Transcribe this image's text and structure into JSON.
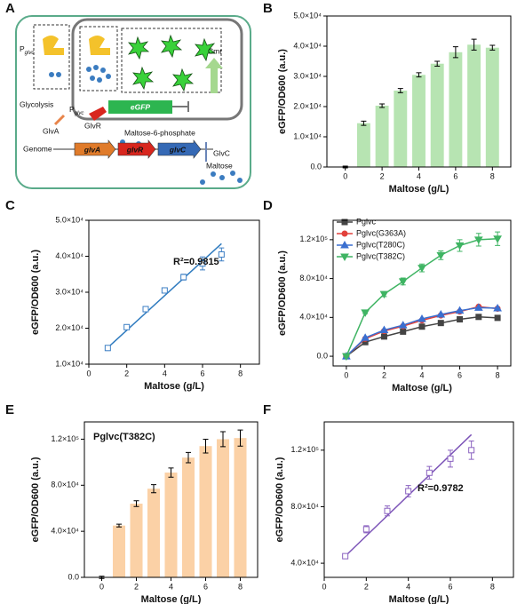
{
  "diagram": {
    "panel": "A",
    "promoter_left": {
      "main": "P",
      "sub": "glvc"
    },
    "promoter_mid": {
      "main": "P",
      "sub": "glvc"
    },
    "glycolysis": "Glycolysis",
    "glva_protein": "GlvA",
    "glvr_protein": "GlvR",
    "reporter": "eGFP",
    "resistance": "Cmr",
    "genome": "Genome",
    "gene_glva": "glvA",
    "gene_glvr": "glvR",
    "gene_glvc": "glvC",
    "metabolite": "Maltose-6-phosphate",
    "transporter": "GlvC",
    "sugar": "Maltose"
  },
  "chart_data": [
    {
      "type": "bar",
      "panel": "B",
      "color": "#b7e4b2",
      "x_label": "Maltose (g/L)",
      "y_label": "eGFP/OD600 (a.u.)",
      "x": [
        0,
        1,
        2,
        3,
        4,
        5,
        6,
        7,
        8
      ],
      "values": [
        0,
        14500,
        20300,
        25300,
        30500,
        34200,
        38000,
        40500,
        39500
      ],
      "errors": [
        300,
        700,
        600,
        700,
        700,
        800,
        1800,
        1800,
        800
      ],
      "xlim": [
        -1,
        9
      ],
      "xticks": [
        0,
        2,
        4,
        6,
        8
      ],
      "ylim": [
        0,
        50000
      ],
      "yticks": [
        {
          "value": 0,
          "label": "0.0"
        },
        {
          "value": 10000,
          "label": "1.0×10⁴"
        },
        {
          "value": 20000,
          "label": "2.0×10⁴"
        },
        {
          "value": 30000,
          "label": "3.0×10⁴"
        },
        {
          "value": 40000,
          "label": "4.0×10⁴"
        },
        {
          "value": 50000,
          "label": "5.0×10⁴"
        }
      ]
    },
    {
      "type": "scatter",
      "panel": "C",
      "color": "#3d7fc4",
      "fit_color": "#2f7bbf",
      "x_label": "Maltose (g/L)",
      "y_label": "eGFP/OD600 (a.u.)",
      "x": [
        1,
        2,
        3,
        4,
        5,
        6,
        7
      ],
      "values": [
        14500,
        20300,
        25300,
        30500,
        34200,
        38000,
        40500
      ],
      "errors": [
        700,
        600,
        700,
        700,
        800,
        1800,
        1800
      ],
      "fit": {
        "x": [
          1,
          7
        ],
        "y": [
          14600,
          43500
        ]
      },
      "annotation": "R²=0.9815",
      "xlim": [
        0,
        9
      ],
      "xticks": [
        0,
        2,
        4,
        6,
        8
      ],
      "ylim": [
        10000,
        50000
      ],
      "yticks": [
        {
          "value": 10000,
          "label": "1.0×10⁴"
        },
        {
          "value": 20000,
          "label": "2.0×10⁴"
        },
        {
          "value": 30000,
          "label": "3.0×10⁴"
        },
        {
          "value": 40000,
          "label": "4.0×10⁴"
        },
        {
          "value": 50000,
          "label": "5.0×10⁴"
        }
      ]
    },
    {
      "type": "line",
      "panel": "D",
      "x_label": "Maltose (g/L)",
      "y_label": "eGFP/OD600 (a.u.)",
      "legend": "upper left",
      "x": [
        0,
        1,
        2,
        3,
        4,
        5,
        6,
        7,
        8
      ],
      "series": [
        {
          "name": "Pglvc",
          "color": "#444444",
          "marker": "square",
          "values": [
            0,
            14500,
            20300,
            25300,
            30500,
            34200,
            38000,
            40500,
            39500
          ]
        },
        {
          "name": "Pglvc(G363A)",
          "color": "#e2413b",
          "marker": "circle",
          "values": [
            0,
            18000,
            26000,
            31000,
            37000,
            42000,
            46000,
            51000,
            49000
          ]
        },
        {
          "name": "Pglvc(T280C)",
          "color": "#3a6fd0",
          "marker": "triangle-up",
          "values": [
            0,
            19000,
            27000,
            32000,
            38500,
            43000,
            47000,
            50000,
            49500
          ]
        },
        {
          "name": "Pglvc(T382C)",
          "color": "#3fb463",
          "marker": "triangle-down",
          "values": [
            0,
            45000,
            64000,
            77000,
            91000,
            104000,
            114000,
            120000,
            121000
          ],
          "errors": [
            1000,
            1200,
            2500,
            3500,
            4000,
            4500,
            6000,
            6500,
            7000
          ]
        }
      ],
      "xlim": [
        -0.7,
        8.7
      ],
      "xticks": [
        0,
        2,
        4,
        6,
        8
      ],
      "ylim": [
        -10000,
        140000
      ],
      "yticks": [
        {
          "value": 0,
          "label": "0.0"
        },
        {
          "value": 40000,
          "label": "4.0×10⁴"
        },
        {
          "value": 80000,
          "label": "8.0×10⁴"
        },
        {
          "value": 120000,
          "label": "1.2×10⁵"
        }
      ]
    },
    {
      "type": "bar",
      "panel": "E",
      "color": "#fbd1a6",
      "x_label": "Maltose (g/L)",
      "y_label": "eGFP/OD600 (a.u.)",
      "annotation": "Pglvc(T382C)",
      "x": [
        0,
        1,
        2,
        3,
        4,
        5,
        6,
        7,
        8
      ],
      "values": [
        0,
        45000,
        64000,
        77000,
        91000,
        104000,
        114000,
        120000,
        121000
      ],
      "errors": [
        1000,
        1200,
        2500,
        3500,
        4000,
        4500,
        6000,
        6500,
        7000
      ],
      "xlim": [
        -1,
        9
      ],
      "xticks": [
        0,
        2,
        4,
        6,
        8
      ],
      "ylim": [
        0,
        135000
      ],
      "yticks": [
        {
          "value": 0,
          "label": "0.0"
        },
        {
          "value": 40000,
          "label": "4.0×10⁴"
        },
        {
          "value": 80000,
          "label": "8.0×10⁴"
        },
        {
          "value": 120000,
          "label": "1.2×10⁵"
        }
      ]
    },
    {
      "type": "scatter",
      "panel": "F",
      "color": "#8a62c0",
      "fit_color": "#7d55b8",
      "x_label": "Maltose (g/L)",
      "y_label": "eGFP/OD600 (a.u.)",
      "x": [
        1,
        2,
        3,
        4,
        5,
        6,
        7
      ],
      "values": [
        45000,
        64000,
        77000,
        91000,
        104000,
        114000,
        120000
      ],
      "errors": [
        1200,
        2500,
        3500,
        4000,
        4500,
        6000,
        6500
      ],
      "fit": {
        "x": [
          1,
          7
        ],
        "y": [
          45000,
          131000
        ]
      },
      "annotation": "R²=0.9782",
      "xlim": [
        0,
        9
      ],
      "xticks": [
        0,
        2,
        4,
        6,
        8
      ],
      "ylim": [
        30000,
        140000
      ],
      "yticks": [
        {
          "value": 40000,
          "label": "4.0×10⁴"
        },
        {
          "value": 80000,
          "label": "8.0×10⁴"
        },
        {
          "value": 120000,
          "label": "1.2×10⁵"
        }
      ]
    }
  ]
}
